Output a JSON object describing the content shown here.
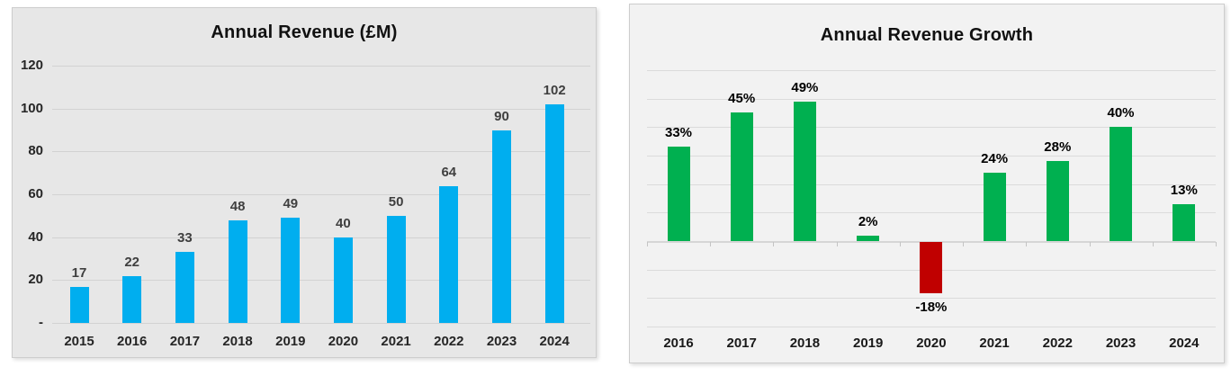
{
  "chart_data": [
    {
      "type": "bar",
      "title": "Annual Revenue (£M)",
      "categories": [
        "2015",
        "2016",
        "2017",
        "2018",
        "2019",
        "2020",
        "2021",
        "2022",
        "2023",
        "2024"
      ],
      "values": [
        17,
        22,
        33,
        48,
        49,
        40,
        50,
        64,
        90,
        102
      ],
      "data_labels": [
        "17",
        "22",
        "33",
        "48",
        "49",
        "40",
        "50",
        "64",
        "90",
        "102"
      ],
      "xlabel": "",
      "ylabel": "",
      "ylim": [
        0,
        120
      ],
      "ytick_step": 20,
      "ytick_labels_bottom_up": [
        "-",
        "20",
        "40",
        "60",
        "80",
        "100",
        "120"
      ],
      "grid": "on",
      "legend": "none",
      "colors": {
        "bar": "#00AEEF",
        "panel_background": "#E7E7E7",
        "gridline": "#D2D2D2",
        "data_label": "#3F3F3F",
        "axis_label": "#262626"
      }
    },
    {
      "type": "bar",
      "title": "Annual Revenue Growth",
      "categories": [
        "2016",
        "2017",
        "2018",
        "2019",
        "2020",
        "2021",
        "2022",
        "2023",
        "2024"
      ],
      "values": [
        33,
        45,
        49,
        2,
        -18,
        24,
        28,
        40,
        13
      ],
      "data_labels": [
        "33%",
        "45%",
        "49%",
        "2%",
        "-18%",
        "24%",
        "28%",
        "40%",
        "13%"
      ],
      "xlabel": "",
      "ylabel": "",
      "ylim": [
        -30,
        60
      ],
      "ytick_step": 10,
      "ytick_labels_bottom_up": [],
      "y_axis_labels_hidden": true,
      "grid": "on",
      "legend": "none",
      "colors": {
        "bar_positive": "#00B050",
        "bar_negative": "#C00000",
        "panel_background": "#F2F2F2",
        "gridline": "#DBDBDB",
        "zero_axis": "#D6D6D6",
        "axis_tick": "#C4C4C4",
        "data_label": "#000000",
        "axis_label": "#1A1A1A"
      }
    }
  ]
}
